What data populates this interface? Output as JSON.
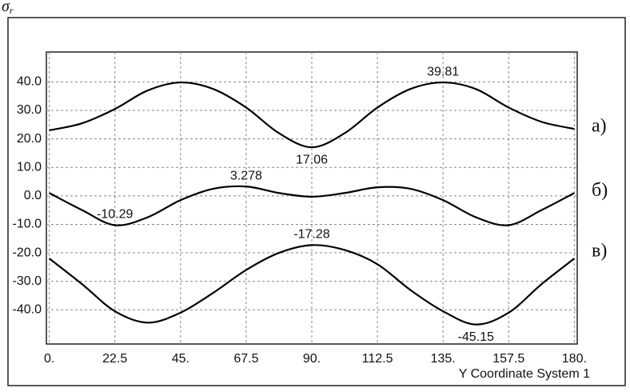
{
  "chart_data": {
    "type": "line",
    "title": "σ",
    "title_subscript": "r",
    "x_label": "Y Coordinate System 1",
    "x": [
      0,
      11.25,
      22.5,
      33.75,
      45,
      56.25,
      67.5,
      78.75,
      90,
      101.25,
      112.5,
      123.75,
      135,
      146.25,
      157.5,
      168.75,
      180
    ],
    "series": [
      {
        "name": "а)",
        "color": "#000000",
        "values": [
          23,
          25.5,
          30.5,
          37,
          39.81,
          37.5,
          31,
          22,
          17.06,
          22,
          31,
          37.5,
          39.81,
          37.5,
          31,
          26,
          23.5
        ]
      },
      {
        "name": "б)",
        "color": "#000000",
        "values": [
          1,
          -5,
          -10.29,
          -7.5,
          -1.5,
          2.5,
          3.278,
          1,
          -0.3,
          1,
          3,
          2.5,
          -1.5,
          -7.5,
          -10.29,
          -5,
          1
        ]
      },
      {
        "name": "в)",
        "color": "#000000",
        "values": [
          -22,
          -31,
          -40.5,
          -44.5,
          -41,
          -34,
          -26,
          -20,
          -17.28,
          -19,
          -24,
          -33,
          -40.5,
          -45.15,
          -41,
          -31,
          -22
        ]
      }
    ],
    "annotations": [
      {
        "x": 135,
        "y": 39.81
      },
      {
        "x": 90,
        "y": 17.06
      },
      {
        "x": 67.5,
        "y": 3.278
      },
      {
        "x": 22.5,
        "y": -10.29
      },
      {
        "x": 90,
        "y": -17.28
      },
      {
        "x": 146.25,
        "y": -45.15
      }
    ],
    "xlim": [
      -1,
      181
    ],
    "ylim": [
      -52,
      50.5
    ],
    "xticks": [
      {
        "value": 0,
        "label": "0."
      },
      22.5,
      {
        "value": 45,
        "label": "45."
      },
      67.5,
      {
        "value": 90,
        "label": "90."
      },
      112.5,
      {
        "value": 135,
        "label": "135."
      },
      157.5,
      {
        "value": 180,
        "label": "180."
      }
    ],
    "yticks": [
      {
        "value": 40,
        "label": "40.0"
      },
      {
        "value": 30,
        "label": "30.0"
      },
      {
        "value": 20,
        "label": "20.0"
      },
      {
        "value": 10,
        "label": "10.0"
      },
      {
        "value": 0,
        "label": "0.0"
      },
      {
        "value": -10,
        "label": "-10.0"
      },
      {
        "value": -20,
        "label": "-20.0"
      },
      {
        "value": -30,
        "label": "-30.0"
      },
      {
        "value": -40,
        "label": "-40.0"
      }
    ],
    "grid": true
  }
}
